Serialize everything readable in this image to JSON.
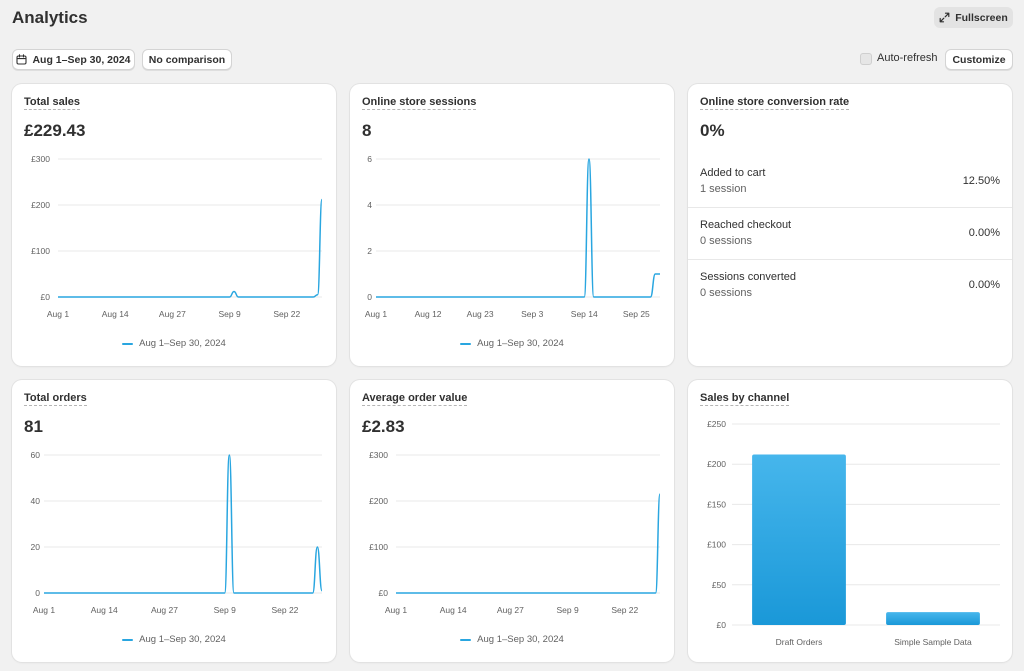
{
  "page": {
    "title": "Analytics"
  },
  "toolbar": {
    "fullscreen_label": "Fullscreen",
    "date_range_label": "Aug 1–Sep 30, 2024",
    "comparison_label": "No comparison",
    "auto_refresh_label": "Auto-refresh",
    "auto_refresh_checked": false,
    "customize_label": "Customize"
  },
  "colors": {
    "accent": "#29a6e0",
    "bar_top": "#46b6ec",
    "bar_bottom": "#1a98d8",
    "grid": "#e8e8e8"
  },
  "cards": {
    "total_sales": {
      "title": "Total sales",
      "value": "£229.43",
      "legend": "Aug 1–Sep 30, 2024"
    },
    "sessions": {
      "title": "Online store sessions",
      "value": "8",
      "legend": "Aug 1–Sep 30, 2024"
    },
    "conversion": {
      "title": "Online store conversion rate",
      "value": "0%",
      "rows": [
        {
          "label": "Added to cart",
          "sub": "1 session",
          "pct": "12.50%"
        },
        {
          "label": "Reached checkout",
          "sub": "0 sessions",
          "pct": "0.00%"
        },
        {
          "label": "Sessions converted",
          "sub": "0 sessions",
          "pct": "0.00%"
        }
      ]
    },
    "orders": {
      "title": "Total orders",
      "value": "81",
      "legend": "Aug 1–Sep 30, 2024"
    },
    "aov": {
      "title": "Average order value",
      "value": "£2.83",
      "legend": "Aug 1–Sep 30, 2024"
    },
    "channel": {
      "title": "Sales by channel"
    }
  },
  "chart_data": [
    {
      "id": "total_sales",
      "type": "line",
      "x_start": "2024-08-01",
      "x_end": "2024-09-30",
      "x_ticks": [
        "Aug 1",
        "Aug 14",
        "Aug 27",
        "Sep 9",
        "Sep 22"
      ],
      "y_ticks": [
        "£0",
        "£100",
        "£200",
        "£300"
      ],
      "ylim": [
        0,
        300
      ],
      "series": [
        {
          "name": "Aug 1–Sep 30, 2024",
          "points": [
            [
              "2024-08-01",
              0
            ],
            [
              "2024-09-09",
              0
            ],
            [
              "2024-09-10",
              12
            ],
            [
              "2024-09-11",
              0
            ],
            [
              "2024-09-28",
              0
            ],
            [
              "2024-09-29",
              5
            ],
            [
              "2024-09-30",
              212
            ]
          ]
        }
      ]
    },
    {
      "id": "sessions",
      "type": "line",
      "x_start": "2024-08-01",
      "x_end": "2024-09-30",
      "x_ticks": [
        "Aug 1",
        "Aug 12",
        "Aug 23",
        "Sep 3",
        "Sep 14",
        "Sep 25"
      ],
      "y_ticks": [
        "0",
        "2",
        "4",
        "6"
      ],
      "ylim": [
        0,
        6
      ],
      "series": [
        {
          "name": "Aug 1–Sep 30, 2024",
          "points": [
            [
              "2024-08-01",
              0
            ],
            [
              "2024-09-14",
              0
            ],
            [
              "2024-09-15",
              6
            ],
            [
              "2024-09-16",
              0
            ],
            [
              "2024-09-28",
              0
            ],
            [
              "2024-09-29",
              1
            ],
            [
              "2024-09-30",
              1
            ]
          ]
        }
      ]
    },
    {
      "id": "orders",
      "type": "line",
      "x_start": "2024-08-01",
      "x_end": "2024-09-30",
      "x_ticks": [
        "Aug 1",
        "Aug 14",
        "Aug 27",
        "Sep 9",
        "Sep 22"
      ],
      "y_ticks": [
        "0",
        "20",
        "40",
        "60"
      ],
      "ylim": [
        0,
        60
      ],
      "series": [
        {
          "name": "Aug 1–Sep 30, 2024",
          "points": [
            [
              "2024-08-01",
              0
            ],
            [
              "2024-09-09",
              0
            ],
            [
              "2024-09-10",
              60
            ],
            [
              "2024-09-11",
              0
            ],
            [
              "2024-09-28",
              0
            ],
            [
              "2024-09-29",
              20
            ],
            [
              "2024-09-30",
              1
            ]
          ]
        }
      ]
    },
    {
      "id": "aov",
      "type": "line",
      "x_start": "2024-08-01",
      "x_end": "2024-09-30",
      "x_ticks": [
        "Aug 1",
        "Aug 14",
        "Aug 27",
        "Sep 9",
        "Sep 22"
      ],
      "y_ticks": [
        "£0",
        "£100",
        "£200",
        "£300"
      ],
      "ylim": [
        0,
        300
      ],
      "series": [
        {
          "name": "Aug 1–Sep 30, 2024",
          "points": [
            [
              "2024-08-01",
              0
            ],
            [
              "2024-09-29",
              0
            ],
            [
              "2024-09-30",
              215
            ]
          ]
        }
      ]
    },
    {
      "id": "channel",
      "type": "bar",
      "categories": [
        "Draft Orders",
        "Simple Sample Data"
      ],
      "values": [
        212,
        16
      ],
      "y_ticks": [
        "£0",
        "£50",
        "£100",
        "£150",
        "£200",
        "£250"
      ],
      "ylim": [
        0,
        250
      ]
    }
  ]
}
